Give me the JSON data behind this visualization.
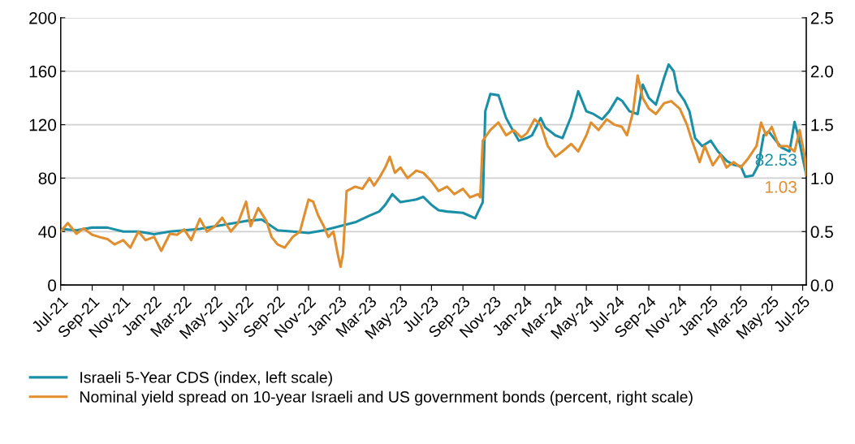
{
  "chart_data": {
    "type": "line",
    "xlim": [
      "2021-07-01",
      "2025-07-08"
    ],
    "xticks": [
      {
        "value": "2021-07-01",
        "label": "Jul-21"
      },
      {
        "value": "2021-09-01",
        "label": "Sep-21"
      },
      {
        "value": "2021-11-01",
        "label": "Nov-21"
      },
      {
        "value": "2022-01-01",
        "label": "Jan-22"
      },
      {
        "value": "2022-03-01",
        "label": "Mar-22"
      },
      {
        "value": "2022-05-01",
        "label": "May-22"
      },
      {
        "value": "2022-07-01",
        "label": "Jul-22"
      },
      {
        "value": "2022-09-01",
        "label": "Sep-22"
      },
      {
        "value": "2022-11-01",
        "label": "Nov-22"
      },
      {
        "value": "2023-01-01",
        "label": "Jan-23"
      },
      {
        "value": "2023-03-01",
        "label": "Mar-23"
      },
      {
        "value": "2023-05-01",
        "label": "May-23"
      },
      {
        "value": "2023-07-01",
        "label": "Jul-23"
      },
      {
        "value": "2023-09-01",
        "label": "Sep-23"
      },
      {
        "value": "2023-11-01",
        "label": "Nov-23"
      },
      {
        "value": "2024-01-01",
        "label": "Jan-24"
      },
      {
        "value": "2024-03-01",
        "label": "Mar-24"
      },
      {
        "value": "2024-05-01",
        "label": "May-24"
      },
      {
        "value": "2024-07-01",
        "label": "Jul-24"
      },
      {
        "value": "2024-09-01",
        "label": "Sep-24"
      },
      {
        "value": "2024-11-01",
        "label": "Nov-24"
      },
      {
        "value": "2025-01-01",
        "label": "Jan-25"
      },
      {
        "value": "2025-03-01",
        "label": "Mar-25"
      },
      {
        "value": "2025-05-01",
        "label": "May-25"
      },
      {
        "value": "2025-07-01",
        "label": "Jul-25"
      }
    ],
    "ylim": [
      0,
      200
    ],
    "yticks": [
      0,
      40,
      80,
      120,
      160,
      200
    ],
    "y2lim": [
      0,
      2.5
    ],
    "y2ticks": [
      {
        "value": 0,
        "label": "0.0"
      },
      {
        "value": 0.5,
        "label": "0.5"
      },
      {
        "value": 1,
        "label": "1.0"
      },
      {
        "value": 1.5,
        "label": "1.5"
      },
      {
        "value": 2,
        "label": "2.0"
      },
      {
        "value": 2.5,
        "label": "2.5"
      }
    ],
    "grid": "y",
    "legend": "bottom",
    "marker": "none",
    "line_style": "solid",
    "series": [
      {
        "name": "Israeli 5-Year CDS (index, left scale)",
        "color": "#1a8fa6",
        "x": [
          "2021-07-01",
          "2021-08-01",
          "2021-09-01",
          "2021-10-01",
          "2021-11-01",
          "2021-12-01",
          "2022-01-01",
          "2022-02-01",
          "2022-03-01",
          "2022-04-01",
          "2022-05-01",
          "2022-06-01",
          "2022-07-01",
          "2022-08-01",
          "2022-09-01",
          "2022-10-01",
          "2022-11-01",
          "2022-12-01",
          "2023-01-01",
          "2023-02-01",
          "2023-03-01",
          "2023-03-20",
          "2023-04-01",
          "2023-04-15",
          "2023-05-01",
          "2023-06-01",
          "2023-06-15",
          "2023-07-01",
          "2023-07-15",
          "2023-08-01",
          "2023-09-01",
          "2023-09-25",
          "2023-10-05",
          "2023-10-10",
          "2023-10-15",
          "2023-10-25",
          "2023-11-10",
          "2023-11-25",
          "2023-12-05",
          "2023-12-20",
          "2024-01-05",
          "2024-01-15",
          "2024-02-01",
          "2024-02-10",
          "2024-03-01",
          "2024-03-15",
          "2024-04-01",
          "2024-04-15",
          "2024-05-01",
          "2024-05-15",
          "2024-06-01",
          "2024-06-15",
          "2024-07-01",
          "2024-07-10",
          "2024-07-25",
          "2024-08-10",
          "2024-08-20",
          "2024-09-01",
          "2024-09-15",
          "2024-10-01",
          "2024-10-10",
          "2024-10-20",
          "2024-10-28",
          "2024-11-10",
          "2024-11-20",
          "2024-12-01",
          "2024-12-15",
          "2025-01-01",
          "2025-01-15",
          "2025-02-01",
          "2025-02-15",
          "2025-03-01",
          "2025-03-10",
          "2025-03-25",
          "2025-04-05",
          "2025-04-15",
          "2025-04-25",
          "2025-05-05",
          "2025-05-20",
          "2025-06-05",
          "2025-06-15",
          "2025-06-22",
          "2025-07-01",
          "2025-07-08"
        ],
        "values": [
          42,
          41,
          43,
          43,
          40,
          40,
          38,
          40,
          41,
          42,
          44,
          46,
          48,
          49,
          41,
          40,
          39,
          41,
          44,
          47,
          52,
          55,
          60,
          68,
          62,
          64,
          66,
          60,
          56,
          55,
          54,
          50,
          58,
          62,
          130,
          143,
          142,
          125,
          118,
          108,
          110,
          112,
          125,
          118,
          112,
          110,
          126,
          145,
          130,
          128,
          124,
          130,
          140,
          138,
          130,
          128,
          150,
          140,
          135,
          155,
          165,
          160,
          145,
          138,
          130,
          110,
          104,
          108,
          100,
          93,
          90,
          89,
          81,
          82,
          90,
          112,
          115,
          110,
          103,
          100,
          122,
          112,
          95,
          82.53
        ],
        "value_labels": [
          null,
          null,
          null,
          null,
          null,
          null,
          null,
          null,
          null,
          null,
          null,
          null,
          null,
          null,
          null,
          null,
          null,
          null,
          null,
          null,
          null,
          null,
          null,
          null,
          null,
          null,
          null,
          null,
          null,
          null,
          null,
          null,
          null,
          null,
          null,
          null,
          null,
          null,
          null,
          null,
          null,
          null,
          null,
          null,
          null,
          null,
          null,
          null,
          null,
          null,
          null,
          null,
          null,
          null,
          null,
          null,
          null,
          null,
          null,
          null,
          null,
          null,
          null,
          null,
          null,
          null,
          null,
          null,
          null,
          null,
          null,
          null,
          null,
          null,
          null,
          null,
          null,
          null,
          null,
          null,
          null,
          null,
          null,
          "82.53"
        ]
      },
      {
        "name": "Nominal yield spread on 10-year Israeli and US government bonds (percent, right scale)",
        "color": "#e08e2e",
        "axis": "y2",
        "x": [
          "2021-07-01",
          "2021-07-15",
          "2021-08-01",
          "2021-08-15",
          "2021-09-01",
          "2021-09-15",
          "2021-10-01",
          "2021-10-15",
          "2021-11-01",
          "2021-11-15",
          "2021-12-01",
          "2021-12-15",
          "2022-01-01",
          "2022-01-15",
          "2022-02-01",
          "2022-02-15",
          "2022-03-01",
          "2022-03-15",
          "2022-04-01",
          "2022-04-15",
          "2022-05-01",
          "2022-05-15",
          "2022-06-01",
          "2022-06-15",
          "2022-07-01",
          "2022-07-10",
          "2022-07-25",
          "2022-08-10",
          "2022-08-20",
          "2022-09-01",
          "2022-09-15",
          "2022-10-01",
          "2022-10-15",
          "2022-11-01",
          "2022-11-10",
          "2022-11-20",
          "2022-12-01",
          "2022-12-10",
          "2022-12-20",
          "2022-12-28",
          "2023-01-03",
          "2023-01-08",
          "2023-01-15",
          "2023-02-01",
          "2023-02-15",
          "2023-03-01",
          "2023-03-10",
          "2023-03-20",
          "2023-04-01",
          "2023-04-10",
          "2023-04-20",
          "2023-05-01",
          "2023-05-15",
          "2023-06-01",
          "2023-06-15",
          "2023-07-01",
          "2023-07-15",
          "2023-08-01",
          "2023-08-15",
          "2023-09-01",
          "2023-09-15",
          "2023-10-01",
          "2023-10-05",
          "2023-10-10",
          "2023-10-25",
          "2023-11-10",
          "2023-11-25",
          "2023-12-10",
          "2023-12-25",
          "2024-01-05",
          "2024-01-20",
          "2024-02-01",
          "2024-02-15",
          "2024-03-01",
          "2024-03-15",
          "2024-04-01",
          "2024-04-15",
          "2024-05-01",
          "2024-05-10",
          "2024-05-25",
          "2024-06-10",
          "2024-06-25",
          "2024-07-10",
          "2024-07-20",
          "2024-08-01",
          "2024-08-10",
          "2024-08-20",
          "2024-09-01",
          "2024-09-15",
          "2024-10-01",
          "2024-10-15",
          "2024-11-01",
          "2024-11-15",
          "2024-11-25",
          "2024-12-10",
          "2024-12-20",
          "2025-01-05",
          "2025-01-20",
          "2025-02-01",
          "2025-02-15",
          "2025-03-01",
          "2025-03-15",
          "2025-04-01",
          "2025-04-10",
          "2025-04-20",
          "2025-05-01",
          "2025-05-15",
          "2025-06-01",
          "2025-06-15",
          "2025-06-25",
          "2025-07-05",
          "2025-07-08"
        ],
        "values": [
          0.5,
          0.58,
          0.48,
          0.53,
          0.47,
          0.45,
          0.43,
          0.38,
          0.42,
          0.35,
          0.5,
          0.42,
          0.45,
          0.32,
          0.48,
          0.47,
          0.52,
          0.42,
          0.62,
          0.5,
          0.55,
          0.63,
          0.5,
          0.58,
          0.78,
          0.55,
          0.72,
          0.6,
          0.45,
          0.38,
          0.35,
          0.45,
          0.5,
          0.8,
          0.78,
          0.65,
          0.55,
          0.45,
          0.5,
          0.3,
          0.17,
          0.3,
          0.88,
          0.92,
          0.9,
          1.0,
          0.93,
          1.0,
          1.1,
          1.2,
          1.05,
          1.1,
          1.0,
          1.07,
          1.05,
          0.97,
          0.88,
          0.92,
          0.85,
          0.9,
          0.82,
          0.85,
          0.82,
          1.35,
          1.45,
          1.52,
          1.4,
          1.45,
          1.38,
          1.42,
          1.55,
          1.5,
          1.3,
          1.2,
          1.25,
          1.32,
          1.25,
          1.4,
          1.52,
          1.45,
          1.55,
          1.5,
          1.48,
          1.4,
          1.62,
          1.96,
          1.75,
          1.65,
          1.6,
          1.7,
          1.72,
          1.65,
          1.5,
          1.35,
          1.15,
          1.3,
          1.12,
          1.22,
          1.1,
          1.15,
          1.1,
          1.18,
          1.3,
          1.52,
          1.4,
          1.48,
          1.3,
          1.3,
          1.25,
          1.45,
          1.2,
          1.03
        ],
        "value_labels": [
          null,
          null,
          null,
          null,
          null,
          null,
          null,
          null,
          null,
          null,
          null,
          null,
          null,
          null,
          null,
          null,
          null,
          null,
          null,
          null,
          null,
          null,
          null,
          null,
          null,
          null,
          null,
          null,
          null,
          null,
          null,
          null,
          null,
          null,
          null,
          null,
          null,
          null,
          null,
          null,
          null,
          null,
          null,
          null,
          null,
          null,
          null,
          null,
          null,
          null,
          null,
          null,
          null,
          null,
          null,
          null,
          null,
          null,
          null,
          null,
          null,
          null,
          null,
          null,
          null,
          null,
          null,
          null,
          null,
          null,
          null,
          null,
          null,
          null,
          null,
          null,
          null,
          null,
          null,
          null,
          null,
          null,
          null,
          null,
          null,
          null,
          null,
          null,
          null,
          null,
          null,
          null,
          null,
          null,
          null,
          null,
          null,
          null,
          null,
          null,
          null,
          null,
          null,
          null,
          null,
          null,
          null,
          null,
          null,
          null,
          null,
          "1.03"
        ]
      }
    ]
  }
}
